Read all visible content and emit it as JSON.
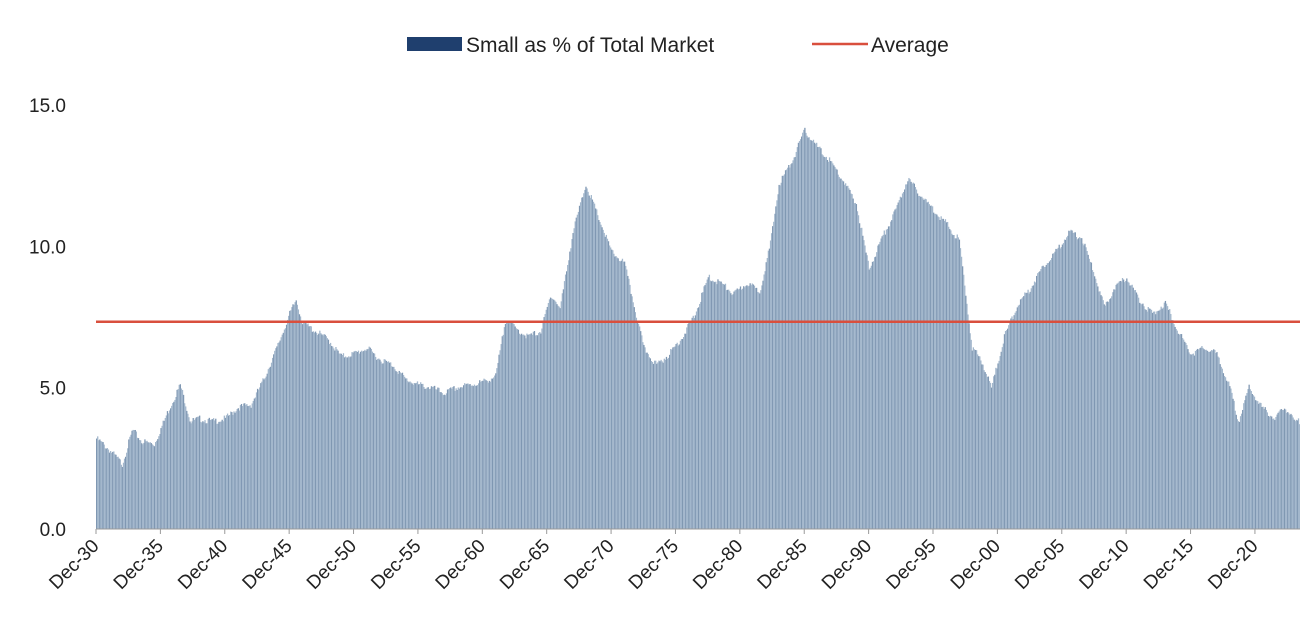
{
  "chart_data": {
    "type": "bar",
    "title": "",
    "xlabel": "",
    "ylabel": "",
    "ylim": [
      0,
      15
    ],
    "y_ticks": [
      "0.0",
      "5.0",
      "10.0",
      "15.0"
    ],
    "x_tick_labels": [
      "Dec-30",
      "Dec-35",
      "Dec-40",
      "Dec-45",
      "Dec-50",
      "Dec-55",
      "Dec-60",
      "Dec-65",
      "Dec-70",
      "Dec-75",
      "Dec-80",
      "Dec-85",
      "Dec-90",
      "Dec-95",
      "Dec-00",
      "Dec-05",
      "Dec-10",
      "Dec-15",
      "Dec-20"
    ],
    "x_range": [
      1930,
      2023.5
    ],
    "grid": false,
    "legend": {
      "position": "top-center"
    },
    "colors": {
      "bars": "#a3b7cc",
      "legend_bar": "#1f3f6e",
      "average": "#d94f3d"
    },
    "series": [
      {
        "name": "Small as % of Total Market",
        "kind": "bar",
        "points": [
          [
            1930,
            3.2
          ],
          [
            1931,
            2.8
          ],
          [
            1932,
            2.3
          ],
          [
            1932.8,
            3.5
          ],
          [
            1933.5,
            3.1
          ],
          [
            1934.5,
            3.0
          ],
          [
            1935.5,
            4.1
          ],
          [
            1936.5,
            5.1
          ],
          [
            1937.3,
            3.8
          ],
          [
            1938,
            3.9
          ],
          [
            1939,
            3.8
          ],
          [
            1940,
            3.9
          ],
          [
            1941,
            4.3
          ],
          [
            1942,
            4.4
          ],
          [
            1943,
            5.3
          ],
          [
            1944,
            6.4
          ],
          [
            1945,
            7.6
          ],
          [
            1945.5,
            8.1
          ],
          [
            1946,
            7.3
          ],
          [
            1947,
            7.0
          ],
          [
            1948,
            6.7
          ],
          [
            1949,
            6.1
          ],
          [
            1950,
            6.2
          ],
          [
            1951,
            6.4
          ],
          [
            1952,
            6.0
          ],
          [
            1953,
            5.8
          ],
          [
            1954,
            5.3
          ],
          [
            1955,
            5.1
          ],
          [
            1956,
            5.0
          ],
          [
            1957,
            4.8
          ],
          [
            1958,
            5.0
          ],
          [
            1959,
            5.1
          ],
          [
            1960,
            5.2
          ],
          [
            1961,
            5.4
          ],
          [
            1961.8,
            7.5
          ],
          [
            1962.5,
            7.1
          ],
          [
            1963.5,
            6.8
          ],
          [
            1964.5,
            7.0
          ],
          [
            1965.3,
            8.3
          ],
          [
            1966,
            7.8
          ],
          [
            1967,
            10.5
          ],
          [
            1968,
            12.2
          ],
          [
            1969,
            11.0
          ],
          [
            1970,
            9.8
          ],
          [
            1971,
            9.4
          ],
          [
            1971.8,
            7.8
          ],
          [
            1972.5,
            6.4
          ],
          [
            1973.5,
            5.8
          ],
          [
            1974.5,
            6.2
          ],
          [
            1975.5,
            6.8
          ],
          [
            1976.5,
            7.6
          ],
          [
            1977.5,
            8.9
          ],
          [
            1978.5,
            8.7
          ],
          [
            1979.5,
            8.3
          ],
          [
            1980.5,
            8.7
          ],
          [
            1981.5,
            8.4
          ],
          [
            1982.3,
            10.0
          ],
          [
            1983,
            12.2
          ],
          [
            1984,
            13.0
          ],
          [
            1985,
            14.1
          ],
          [
            1986,
            13.5
          ],
          [
            1987,
            13.0
          ],
          [
            1988,
            12.3
          ],
          [
            1989,
            11.5
          ],
          [
            1990,
            9.2
          ],
          [
            1991,
            10.3
          ],
          [
            1992,
            11.2
          ],
          [
            1993,
            12.4
          ],
          [
            1994,
            11.8
          ],
          [
            1995,
            11.3
          ],
          [
            1996,
            10.8
          ],
          [
            1997,
            10.2
          ],
          [
            1998,
            6.4
          ],
          [
            1998.7,
            6.0
          ],
          [
            1999.5,
            5.0
          ],
          [
            2000.5,
            6.8
          ],
          [
            2001.5,
            7.9
          ],
          [
            2002.5,
            8.5
          ],
          [
            2003.5,
            9.3
          ],
          [
            2004.5,
            9.8
          ],
          [
            2005.5,
            10.5
          ],
          [
            2006.5,
            10.3
          ],
          [
            2007.5,
            9.0
          ],
          [
            2008.3,
            7.8
          ],
          [
            2009,
            8.5
          ],
          [
            2010,
            8.9
          ],
          [
            2011,
            8.1
          ],
          [
            2012,
            7.6
          ],
          [
            2013,
            8.0
          ],
          [
            2014,
            7.0
          ],
          [
            2015,
            6.2
          ],
          [
            2016,
            6.4
          ],
          [
            2017,
            6.2
          ],
          [
            2018,
            5.0
          ],
          [
            2018.7,
            3.8
          ],
          [
            2019.5,
            5.0
          ],
          [
            2020.5,
            4.3
          ],
          [
            2021.5,
            3.9
          ],
          [
            2022.3,
            4.3
          ],
          [
            2023,
            3.8
          ]
        ]
      },
      {
        "name": "Average",
        "kind": "line",
        "value": 7.33
      }
    ]
  }
}
